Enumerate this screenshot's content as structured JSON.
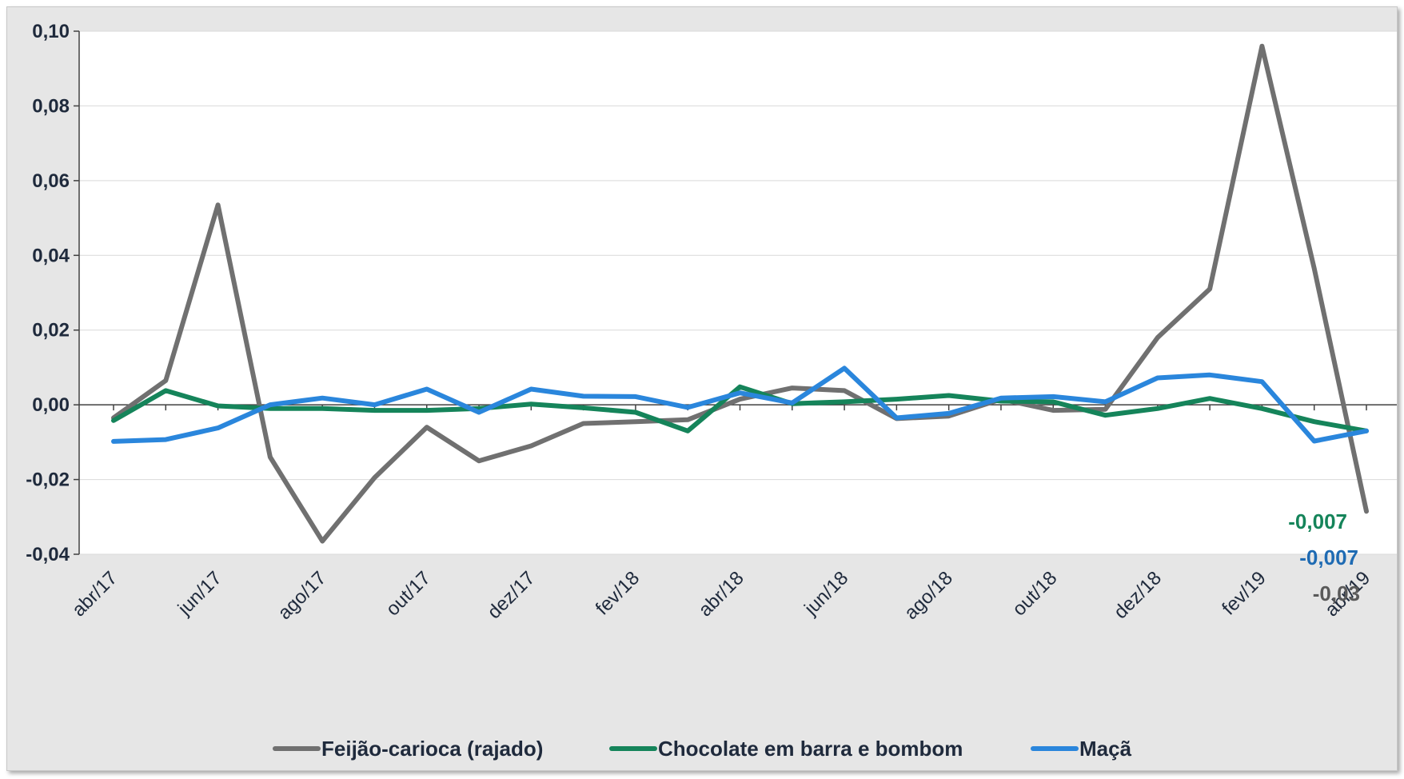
{
  "chart_data": {
    "type": "line",
    "title": "",
    "xlabel": "",
    "ylabel": "",
    "ylim": [
      -0.04,
      0.1
    ],
    "y_ticks": [
      "0,10",
      "0,08",
      "0,06",
      "0,04",
      "0,02",
      "0,00",
      "-0,02",
      "-0,04"
    ],
    "y_tick_values": [
      0.1,
      0.08,
      0.06,
      0.04,
      0.02,
      0.0,
      -0.02,
      -0.04
    ],
    "x": [
      "abr/17",
      "mai/17",
      "jun/17",
      "jul/17",
      "ago/17",
      "set/17",
      "out/17",
      "nov/17",
      "dez/17",
      "jan/18",
      "fev/18",
      "mar/18",
      "abr/18",
      "mai/18",
      "jun/18",
      "jul/18",
      "ago/18",
      "set/18",
      "out/18",
      "nov/18",
      "dez/18",
      "jan/19",
      "fev/19",
      "mar/19",
      "abr/19"
    ],
    "x_tick_labels": [
      "abr/17",
      "jun/17",
      "ago/17",
      "out/17",
      "dez/17",
      "fev/18",
      "abr/18",
      "jun/18",
      "ago/18",
      "out/18",
      "dez/18",
      "fev/19",
      "abr/19"
    ],
    "grid": true,
    "legend_position": "bottom",
    "series": [
      {
        "name": "Feijão-carioca (rajado)",
        "color": "#707070",
        "values": [
          -0.0035,
          0.0065,
          0.0535,
          -0.014,
          -0.0365,
          -0.0195,
          -0.006,
          -0.015,
          -0.011,
          -0.005,
          -0.0045,
          -0.004,
          0.0015,
          0.0045,
          0.0038,
          -0.0037,
          -0.003,
          0.0015,
          -0.0015,
          -0.0012,
          0.018,
          0.031,
          0.096,
          0.0365,
          -0.0285
        ],
        "end_label": "-0,03",
        "end_label_color": "#595959"
      },
      {
        "name": "Chocolate em barra e bombom",
        "color": "#15845a",
        "values": [
          -0.0042,
          0.0038,
          -0.0003,
          -0.001,
          -0.001,
          -0.0015,
          -0.0015,
          -0.001,
          0.0002,
          -0.0008,
          -0.002,
          -0.007,
          0.0048,
          0.0003,
          0.0008,
          0.0015,
          0.0025,
          0.001,
          0.0008,
          -0.0028,
          -0.001,
          0.0017,
          -0.001,
          -0.0045,
          -0.007
        ],
        "end_label": "-0,007",
        "end_label_color": "#15845a"
      },
      {
        "name": "Maçã",
        "color": "#2a86dc",
        "values": [
          -0.0098,
          -0.0093,
          -0.0062,
          0.0,
          0.0018,
          0.0,
          0.0042,
          -0.002,
          0.0042,
          0.0023,
          0.0022,
          -0.0007,
          0.0032,
          0.0005,
          0.0098,
          -0.0035,
          -0.0023,
          0.0018,
          0.0022,
          0.0008,
          0.0072,
          0.008,
          0.0062,
          -0.0097,
          -0.007
        ],
        "end_label": "-0,007",
        "end_label_color": "#1f6bb3"
      }
    ]
  }
}
